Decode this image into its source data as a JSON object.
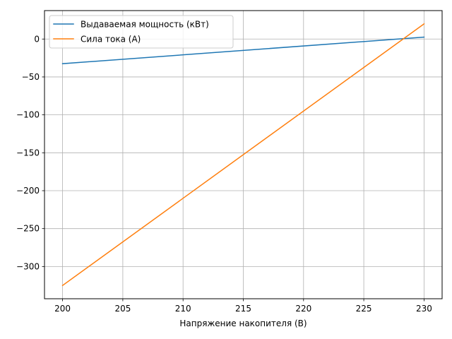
{
  "chart_data": {
    "type": "line",
    "xlabel": "Напряжение накопителя (В)",
    "ylabel": "",
    "xlim": [
      198.5,
      231.5
    ],
    "ylim": [
      -342.5,
      37.5
    ],
    "x_ticks": [
      200,
      205,
      210,
      215,
      220,
      225,
      230
    ],
    "y_ticks": [
      0,
      -50,
      -100,
      -150,
      -200,
      -250,
      -300
    ],
    "grid": true,
    "legend_position": "upper-left",
    "series": [
      {
        "name": "Выдаваемая мощность (кВт)",
        "color": "#1f77b4",
        "x": [
          200,
          230
        ],
        "y": [
          -32.5,
          2.5
        ]
      },
      {
        "name": "Сила тока (А)",
        "color": "#ff7f0e",
        "x": [
          200,
          230
        ],
        "y": [
          -325,
          20
        ]
      }
    ]
  }
}
